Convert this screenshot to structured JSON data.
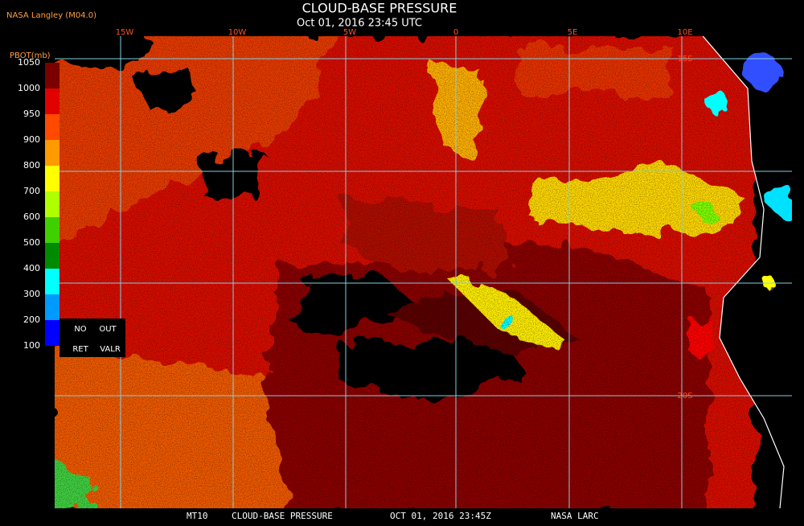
{
  "header": {
    "source": "NASA Langley (M04.0)",
    "title": "CLOUD-BASE PRESSURE",
    "datetime": "Oct 01, 2016 23:45 UTC"
  },
  "legend": {
    "title": "PBOT(mb)",
    "levels": [
      1050,
      1000,
      950,
      900,
      800,
      700,
      600,
      500,
      400,
      300,
      200,
      100
    ],
    "colors": [
      "#7a0000",
      "#e00000",
      "#ff4a00",
      "#ff9a00",
      "#ffff00",
      "#b0ff00",
      "#40d000",
      "#008a00",
      "#00ffff",
      "#009aff",
      "#0000ff",
      "#8a30e0"
    ],
    "no_ret": [
      "NO",
      "RET"
    ],
    "out_valr": [
      "OUT",
      "VALR"
    ]
  },
  "map": {
    "longitudes": [
      "15W",
      "10W",
      "5W",
      "0",
      "5E",
      "10E"
    ],
    "latitudes": [
      "15S",
      "20S"
    ]
  },
  "footer": {
    "product": "MT10",
    "title": "CLOUD-BASE PRESSURE",
    "datetime": "OCT 01, 2016 23:45Z",
    "credit": "NASA LARC"
  }
}
